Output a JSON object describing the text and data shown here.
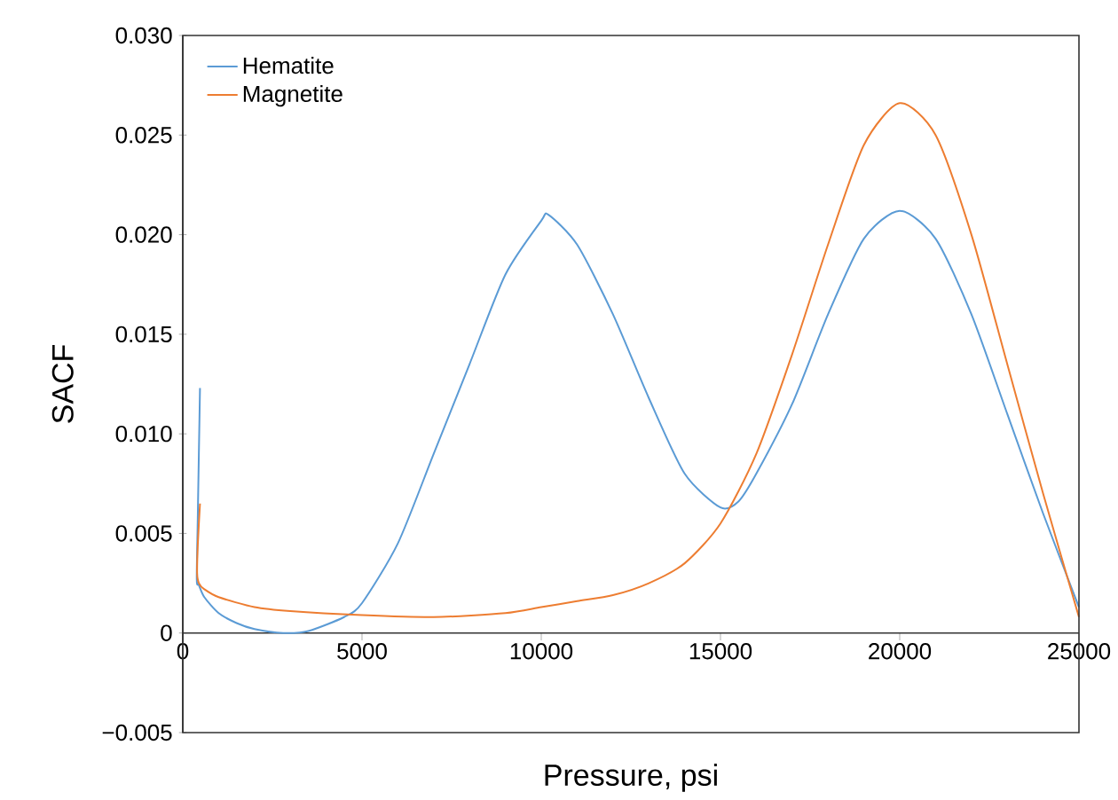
{
  "chart_data": {
    "type": "line",
    "xlabel": "Pressure, psi",
    "ylabel": "SACF",
    "xlim": [
      0,
      25000
    ],
    "ylim": [
      -0.005,
      0.03
    ],
    "xticks": [
      0,
      5000,
      10000,
      15000,
      20000,
      25000
    ],
    "yticks": [
      {
        "value": -0.005,
        "label": "−0.005"
      },
      0,
      {
        "value": 0.005,
        "label": "0.005"
      },
      {
        "value": 0.01,
        "label": "0.010"
      },
      {
        "value": 0.015,
        "label": "0.015"
      },
      {
        "value": 0.02,
        "label": "0.020"
      },
      {
        "value": 0.025,
        "label": "0.025"
      },
      {
        "value": 0.03,
        "label": "0.030"
      }
    ],
    "legend": "top left",
    "marker": "none",
    "line_style": "solid",
    "grid": false,
    "series": [
      {
        "name": "Hematite",
        "color": "#5b9bd5",
        "x": [
          480,
          420,
          390,
          450,
          600,
          1000,
          1500,
          2000,
          2800,
          3500,
          4500,
          5000,
          6000,
          7000,
          8000,
          9000,
          10000,
          10200,
          11000,
          12000,
          13000,
          14000,
          15000,
          15500,
          16000,
          17000,
          18000,
          19000,
          20000,
          21000,
          22000,
          23000,
          24000,
          25000
        ],
        "values": [
          0.0123,
          0.006,
          0.0027,
          0.0024,
          0.0018,
          0.001,
          0.0005,
          0.0002,
          0.0,
          0.0001,
          0.0008,
          0.0015,
          0.0045,
          0.009,
          0.0135,
          0.018,
          0.0207,
          0.021,
          0.0195,
          0.016,
          0.0118,
          0.008,
          0.0063,
          0.0066,
          0.008,
          0.0115,
          0.016,
          0.0198,
          0.0212,
          0.0198,
          0.016,
          0.011,
          0.006,
          0.0013
        ]
      },
      {
        "name": "Magnetite",
        "color": "#ed7d31",
        "x": [
          480,
          420,
          400,
          450,
          600,
          1000,
          2000,
          3000,
          5000,
          7000,
          9000,
          10000,
          11000,
          12000,
          13000,
          14000,
          15000,
          16000,
          17000,
          18000,
          19000,
          20000,
          21000,
          22000,
          23000,
          24000,
          25000
        ],
        "values": [
          0.0065,
          0.0045,
          0.003,
          0.0025,
          0.0022,
          0.0018,
          0.0013,
          0.0011,
          0.0009,
          0.0008,
          0.001,
          0.0013,
          0.0016,
          0.0019,
          0.0025,
          0.0035,
          0.0055,
          0.009,
          0.014,
          0.0195,
          0.0245,
          0.0266,
          0.025,
          0.02,
          0.0135,
          0.007,
          0.0008
        ]
      }
    ]
  }
}
